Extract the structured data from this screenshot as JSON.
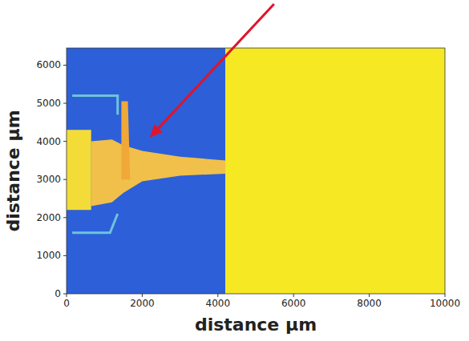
{
  "chart_data": {
    "type": "image",
    "x_label": "distance µm",
    "y_label": "distance µm",
    "xlim": [
      0,
      10000
    ],
    "ylim": [
      0,
      6450
    ],
    "xticks": [
      0,
      2000,
      4000,
      6000,
      8000,
      10000
    ],
    "yticks": [
      0,
      1000,
      2000,
      3000,
      4000,
      5000,
      6000
    ],
    "regions": [
      {
        "color": "#2d5fd8",
        "points": [
          [
            0,
            0
          ],
          [
            4200,
            0
          ],
          [
            4200,
            6450
          ],
          [
            0,
            6450
          ]
        ]
      },
      {
        "color": "#f6e924",
        "points": [
          [
            4200,
            0
          ],
          [
            10000,
            0
          ],
          [
            10000,
            6450
          ],
          [
            4200,
            6450
          ]
        ]
      },
      {
        "color": "#f4dc38",
        "points": [
          [
            0,
            2200
          ],
          [
            650,
            2200
          ],
          [
            650,
            4300
          ],
          [
            0,
            4300
          ]
        ]
      },
      {
        "color": "#f0c04a",
        "points": [
          [
            650,
            4000
          ],
          [
            1200,
            4050
          ],
          [
            1500,
            3900
          ],
          [
            2000,
            3750
          ],
          [
            3000,
            3600
          ],
          [
            4200,
            3500
          ],
          [
            4200,
            3150
          ],
          [
            3000,
            3100
          ],
          [
            2000,
            2950
          ],
          [
            1500,
            2650
          ],
          [
            1200,
            2400
          ],
          [
            650,
            2300
          ]
        ]
      },
      {
        "color": "#f0a838",
        "points": [
          [
            1450,
            5050
          ],
          [
            1620,
            5050
          ],
          [
            1680,
            3000
          ],
          [
            1450,
            3000
          ]
        ]
      }
    ],
    "outlines": [
      {
        "color": "#6cc4dc",
        "points": [
          [
            150,
            5200
          ],
          [
            1350,
            5200
          ],
          [
            1350,
            4700
          ]
        ]
      },
      {
        "color": "#6cc4dc",
        "points": [
          [
            150,
            1600
          ],
          [
            1150,
            1600
          ],
          [
            1350,
            2100
          ]
        ]
      }
    ],
    "arrow": {
      "x": 2200,
      "y": 4100,
      "color": "#e0142a"
    }
  }
}
